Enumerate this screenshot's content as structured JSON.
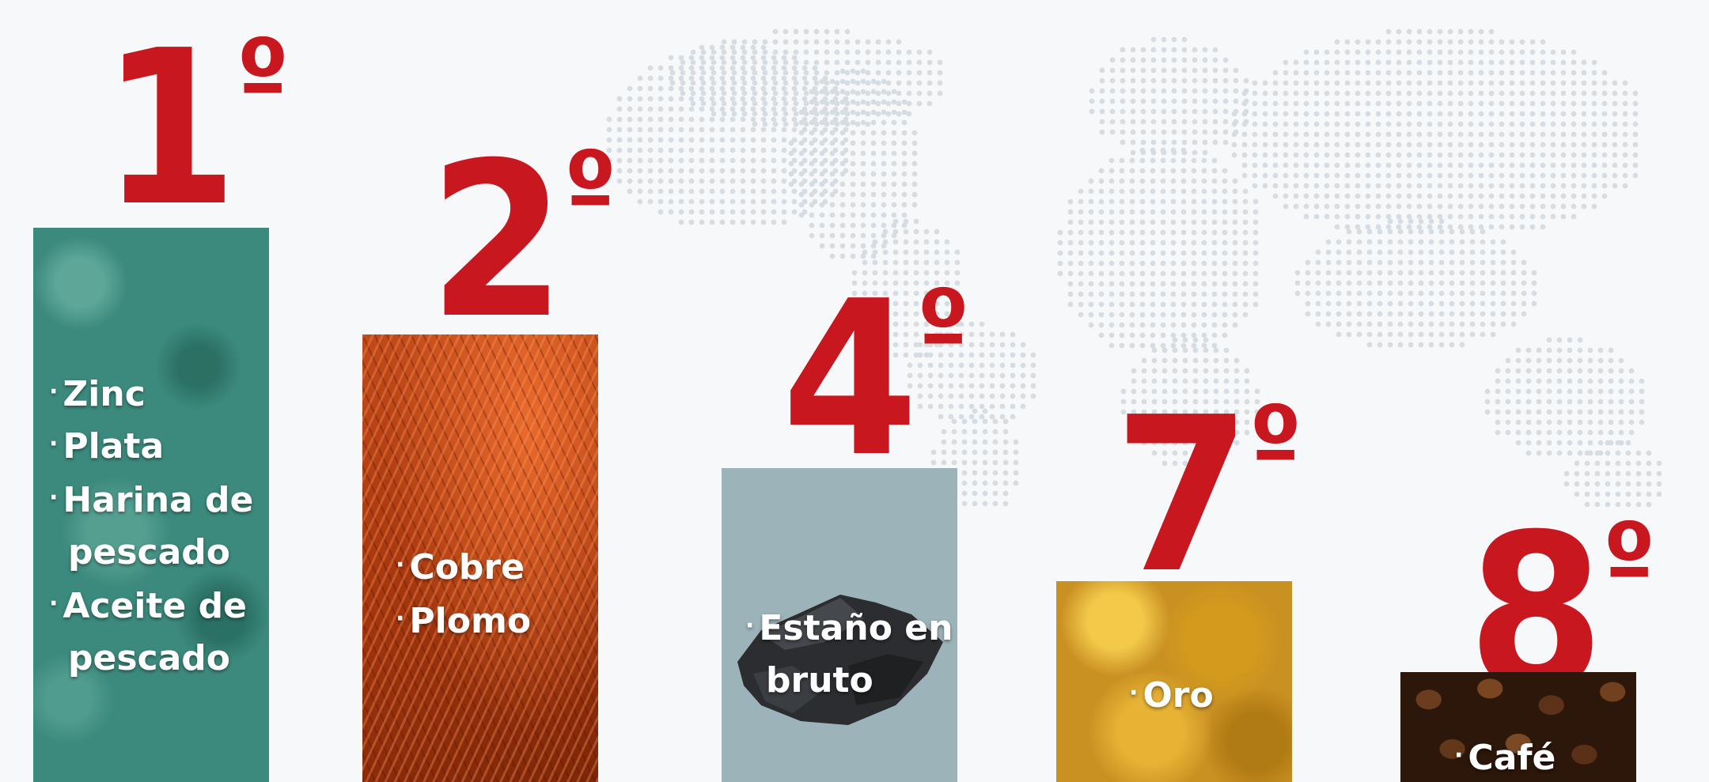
{
  "colors": {
    "background": "#f7f8f9",
    "rank_red": "#c8171e",
    "map_dots": "#d6dde2",
    "label_text": "#ffffff"
  },
  "rankings": [
    {
      "rank": "1",
      "degree": "º",
      "image": "green-powder",
      "items": [
        "Zinc",
        "Plata",
        "Harina de",
        "pescado",
        "Aceite de",
        "pescado"
      ]
    },
    {
      "rank": "2",
      "degree": "º",
      "image": "copper-wires",
      "items": [
        "Cobre",
        "Plomo"
      ]
    },
    {
      "rank": "4",
      "degree": "º",
      "image": "tin-ore-rock",
      "items": [
        "Estaño en",
        "bruto"
      ]
    },
    {
      "rank": "7",
      "degree": "º",
      "image": "gold-nuggets",
      "items": [
        "Oro"
      ]
    },
    {
      "rank": "8",
      "degree": "º",
      "image": "coffee-beans",
      "items": [
        "Café"
      ]
    }
  ],
  "bullet": "·",
  "background_image": "dotted-world-map"
}
